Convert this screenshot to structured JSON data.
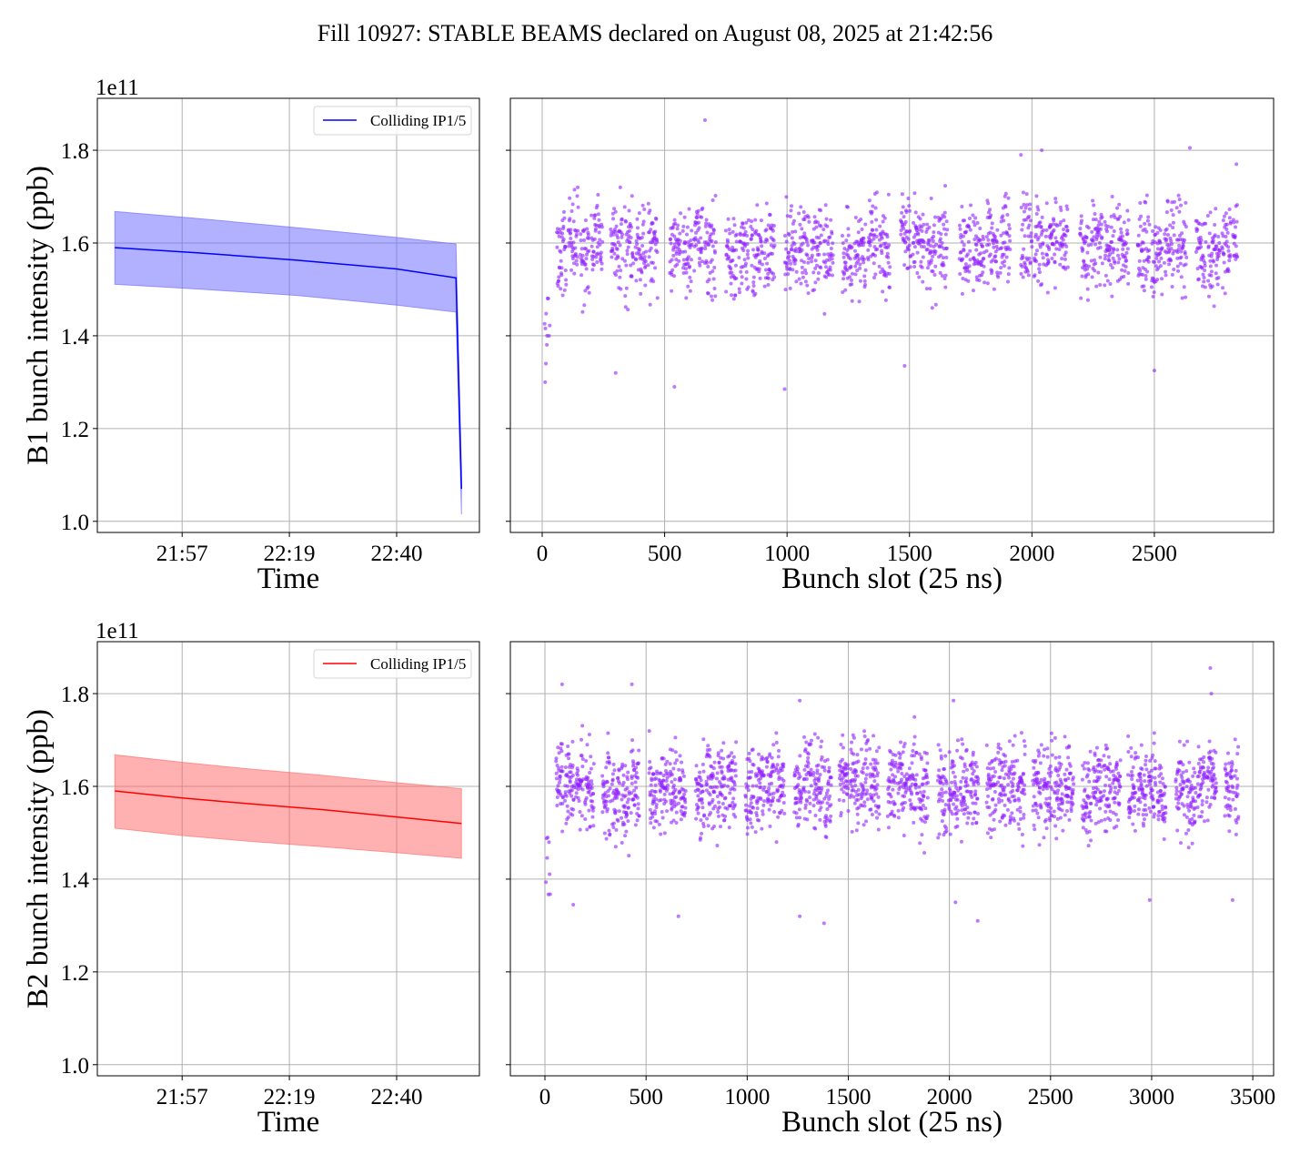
{
  "title": "Fill 10927: STABLE BEAMS declared on August 08, 2025 at 21:42:56",
  "chart_data": [
    {
      "id": "b1-time",
      "type": "line",
      "panel": "top-left",
      "ylabel": "B1 bunch intensity (ppb)",
      "xlabel": "Time",
      "offset_label": "1e11",
      "ylim": [
        0.976,
        1.912
      ],
      "yticks": [
        1.0,
        1.2,
        1.4,
        1.6,
        1.8
      ],
      "ytick_labels": [
        "1.0",
        "1.2",
        "1.4",
        "1.6",
        "1.8"
      ],
      "xlim_minutes_after_21h": [
        40,
        116.6
      ],
      "xticks_minutes_after_21h": [
        57,
        78.5,
        100
      ],
      "xtick_labels": [
        "21:57",
        "22:19",
        "22:40"
      ],
      "color": "#0000ff",
      "fill_color": "#6464ff",
      "legend": "Colliding IP1/5",
      "legend_position": "top-right",
      "grid": true,
      "series": {
        "t": [
          43.5,
          60,
          80,
          100,
          111.9,
          113
        ],
        "mean": [
          1.59,
          1.579,
          1.563,
          1.544,
          1.525,
          1.07
        ],
        "upper": [
          1.668,
          1.653,
          1.633,
          1.612,
          1.598,
          1.11
        ],
        "lower": [
          1.511,
          1.501,
          1.487,
          1.466,
          1.451,
          1.015
        ]
      }
    },
    {
      "id": "b1-slot",
      "type": "scatter",
      "panel": "top-right",
      "xlabel": "Bunch slot (25 ns)",
      "xlim": [
        -130,
        2987
      ],
      "ylim": [
        0.976,
        1.912
      ],
      "xticks": [
        0,
        500,
        1000,
        1500,
        2000,
        2500
      ],
      "xtick_labels": [
        "0",
        "500",
        "1000",
        "1500",
        "2000",
        "2500"
      ],
      "yticks": [
        1.0,
        1.2,
        1.4,
        1.6,
        1.8
      ],
      "color": "#8f1fff",
      "grid": true,
      "slot_range": [
        10,
        2840
      ],
      "mean": 1.59,
      "spread": 0.065,
      "seed": 10927,
      "low_outliers": [
        [
          12,
          1.3
        ],
        [
          15,
          1.34
        ],
        [
          20,
          1.4
        ],
        [
          300,
          1.32
        ],
        [
          540,
          1.29
        ],
        [
          990,
          1.285
        ],
        [
          1480,
          1.335
        ],
        [
          2500,
          1.325
        ]
      ],
      "high_outliers": [
        [
          665,
          1.865
        ],
        [
          1955,
          1.79
        ],
        [
          2040,
          1.8
        ],
        [
          2645,
          1.805
        ],
        [
          2835,
          1.77
        ]
      ]
    },
    {
      "id": "b2-time",
      "type": "line",
      "panel": "bottom-left",
      "ylabel": "B2 bunch intensity (ppb)",
      "xlabel": "Time",
      "offset_label": "1e11",
      "ylim": [
        0.976,
        1.912
      ],
      "yticks": [
        1.0,
        1.2,
        1.4,
        1.6,
        1.8
      ],
      "ytick_labels": [
        "1.0",
        "1.2",
        "1.4",
        "1.6",
        "1.8"
      ],
      "xlim_minutes_after_21h": [
        40,
        116.6
      ],
      "xticks_minutes_after_21h": [
        57,
        78.5,
        100
      ],
      "xtick_labels": [
        "21:57",
        "22:19",
        "22:40"
      ],
      "color": "#ff0000",
      "fill_color": "#ff6464",
      "legend": "Colliding IP1/5",
      "legend_position": "top-right",
      "grid": true,
      "series": {
        "t": [
          43.5,
          57,
          70,
          85,
          100,
          113
        ],
        "mean": [
          1.59,
          1.575,
          1.563,
          1.55,
          1.534,
          1.52
        ],
        "upper": [
          1.668,
          1.652,
          1.638,
          1.624,
          1.608,
          1.595
        ],
        "lower": [
          1.51,
          1.494,
          1.482,
          1.47,
          1.457,
          1.445
        ]
      }
    },
    {
      "id": "b2-slot",
      "type": "scatter",
      "panel": "bottom-right",
      "xlabel": "Bunch slot (25 ns)",
      "xlim": [
        -171,
        3603
      ],
      "ylim": [
        0.976,
        1.912
      ],
      "xticks": [
        0,
        500,
        1000,
        1500,
        2000,
        2500,
        3000,
        3500
      ],
      "xtick_labels": [
        "0",
        "500",
        "1000",
        "1500",
        "2000",
        "2500",
        "3000",
        "3500"
      ],
      "yticks": [
        1.0,
        1.2,
        1.4,
        1.6,
        1.8
      ],
      "color": "#8f1fff",
      "grid": true,
      "slot_range": [
        5,
        3430
      ],
      "mean": 1.595,
      "spread": 0.065,
      "seed": 7,
      "low_outliers": [
        [
          140,
          1.345
        ],
        [
          660,
          1.32
        ],
        [
          1260,
          1.32
        ],
        [
          1380,
          1.305
        ],
        [
          2030,
          1.35
        ],
        [
          2140,
          1.31
        ],
        [
          2990,
          1.355
        ],
        [
          3400,
          1.355
        ]
      ],
      "high_outliers": [
        [
          85,
          1.82
        ],
        [
          430,
          1.82
        ],
        [
          1260,
          1.785
        ],
        [
          2020,
          1.785
        ],
        [
          3290,
          1.855
        ],
        [
          3295,
          1.8
        ]
      ]
    }
  ]
}
